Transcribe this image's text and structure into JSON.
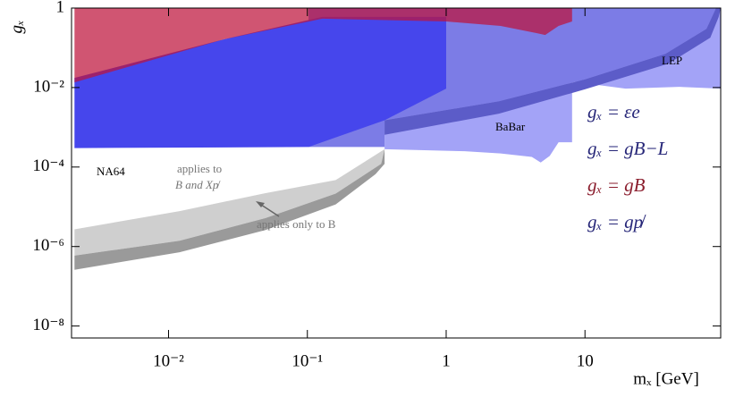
{
  "chart_data": {
    "type": "region",
    "xlabel": "mₓ [GeV]",
    "ylabel": "gₓ",
    "xlog": true,
    "ylog": true,
    "xlim": [
      0.002,
      95
    ],
    "ylim": [
      5e-09,
      1
    ],
    "xticks": [
      {
        "value": 0.01,
        "label": "10⁻²"
      },
      {
        "value": 0.1,
        "label": "10⁻¹"
      },
      1,
      10
    ],
    "yticks": [
      1,
      {
        "value": 0.01,
        "label": "10⁻²"
      },
      {
        "value": 0.0001,
        "label": "10⁻⁴"
      },
      {
        "value": 1e-06,
        "label": "10⁻⁶"
      },
      {
        "value": 1e-08,
        "label": "10⁻⁸"
      }
    ],
    "regions": [
      {
        "color": "#a3a3f7",
        "x": [
          0.36,
          95,
          95,
          47.7,
          19.6,
          8.07,
          8.07,
          6.45,
          5.57,
          4.8,
          4.14,
          2.47,
          1.36,
          0.36
        ],
        "y": [
          1,
          1,
          0.0094,
          0.0104,
          0.0094,
          0.0141,
          0.00042,
          0.00042,
          0.00019,
          0.00013,
          0.00018,
          0.00022,
          0.00025,
          0.00028
        ]
      },
      {
        "color": "#7c7ce6",
        "x": [
          0.102,
          0.36,
          0.36,
          2.4,
          10,
          38,
          75,
          88,
          0.102
        ],
        "y": [
          0.00032,
          0.00032,
          0.0015,
          0.0045,
          0.016,
          0.07,
          0.3,
          1,
          1
        ]
      },
      {
        "color": "#5c5cc8",
        "x": [
          0.36,
          2.4,
          10,
          38,
          75,
          88,
          95,
          92,
          80,
          40,
          10,
          2.4,
          0.36
        ],
        "y": [
          0.0015,
          0.0045,
          0.016,
          0.07,
          0.3,
          1,
          1,
          0.6,
          0.18,
          0.04,
          0.009,
          0.0022,
          0.00065
        ]
      },
      {
        "color": "#4646ec",
        "x": [
          0.0021,
          0.025,
          0.128,
          1,
          1,
          0.36,
          0.102,
          0.0021
        ],
        "y": [
          0.0175,
          0.163,
          0.6,
          0.6,
          0.0094,
          0.0015,
          0.00032,
          0.0003
        ]
      },
      {
        "color": "rgba(190,20,60,0.72)",
        "x": [
          0.0021,
          8.07,
          8.07,
          6.45,
          5.17,
          4.47,
          2.47,
          1,
          0.128,
          0.025,
          0.0021
        ],
        "y": [
          1,
          1,
          0.46,
          0.355,
          0.21,
          0.234,
          0.355,
          0.46,
          0.54,
          0.163,
          0.0135
        ]
      },
      {
        "color": "#cfcfcf",
        "x": [
          0.0021,
          0.012,
          0.05,
          0.16,
          0.36,
          0.34,
          0.16,
          0.05,
          0.012,
          0.0021
        ],
        "y": [
          2.7e-06,
          7.8e-06,
          2.2e-05,
          4.7e-05,
          0.00028,
          0.00012,
          2.15e-05,
          5.2e-06,
          1.4e-06,
          5.9e-07
        ]
      },
      {
        "color": "#9a9a9a",
        "x": [
          0.0021,
          0.012,
          0.05,
          0.16,
          0.34,
          0.36,
          0.36,
          0.31,
          0.16,
          0.05,
          0.012,
          0.0021
        ],
        "y": [
          5.9e-07,
          1.4e-06,
          5.2e-06,
          2.15e-05,
          0.00012,
          0.00028,
          0.00012,
          6.6e-05,
          1.15e-05,
          2.6e-06,
          7.2e-07,
          2.6e-07
        ]
      }
    ],
    "annotations": [
      "NA64",
      "applies to",
      "B and Xp̸",
      "applies only to B",
      "BaBar",
      "LEP"
    ],
    "legend": [
      {
        "label": "gₓ = εe",
        "color": "#262678"
      },
      {
        "label": "gₓ = gB−L",
        "color": "#262678"
      },
      {
        "label": "gₓ = gB",
        "color": "#8a1c2c"
      },
      {
        "label": "gₓ = gp̸",
        "color": "#262678"
      }
    ]
  }
}
